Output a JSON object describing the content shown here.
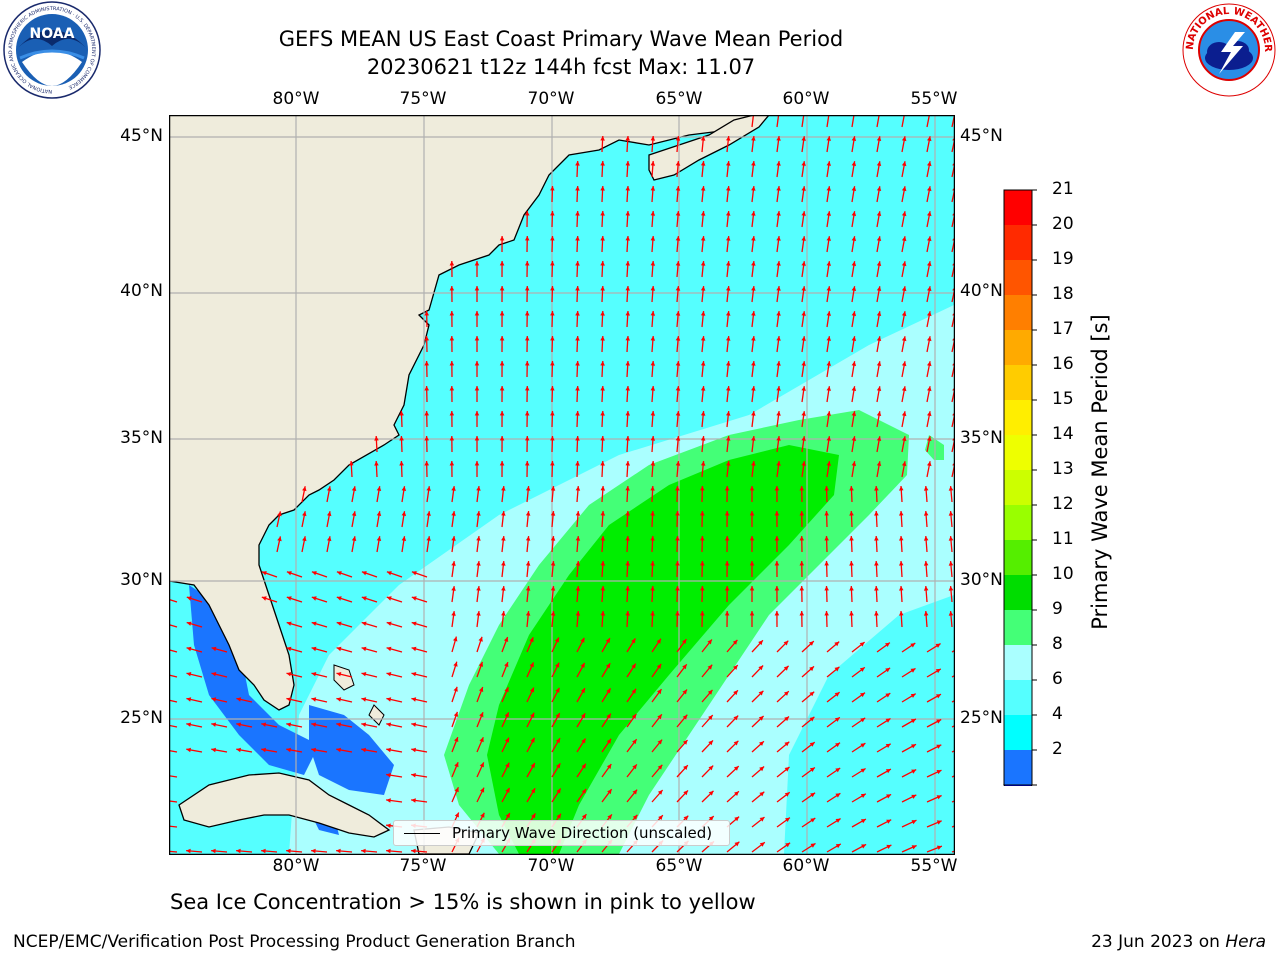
{
  "title": {
    "line1": "GEFS MEAN US East Coast Primary Wave Mean Period",
    "line2": "20230621 t12z 144h fcst   Max: 11.07"
  },
  "map": {
    "lon_ticks": [
      "80°W",
      "75°W",
      "70°W",
      "65°W",
      "60°W",
      "55°W"
    ],
    "lat_ticks": [
      "45°N",
      "40°N",
      "35°N",
      "30°N",
      "25°N"
    ],
    "lon_range": [
      -85,
      -54.3
    ],
    "lat_range": [
      20.5,
      46
    ],
    "grid": true,
    "colors": {
      "land": "#efecdc",
      "coast": "#000000",
      "arrows": "#ff0000",
      "grid": "#b0b0b0"
    }
  },
  "legend": {
    "label": "Primary Wave Direction (unscaled)"
  },
  "colorbar": {
    "label": "Primary Wave Mean Period [s]",
    "ticks": [
      "21",
      "20",
      "19",
      "18",
      "17",
      "16",
      "15",
      "14",
      "13",
      "12",
      "11",
      "10",
      "9",
      "8",
      "6",
      "4",
      "2"
    ],
    "colors": [
      "#ff0000",
      "#ff2a00",
      "#ff5500",
      "#ff7f00",
      "#ffaa00",
      "#ffcc00",
      "#ffee00",
      "#eeff00",
      "#ccff00",
      "#99ff00",
      "#55ee00",
      "#00dd00",
      "#44ff77",
      "#aaffff",
      "#55ffff",
      "#00ffff",
      "#1a75ff"
    ],
    "extend_min_color": "#0000ff"
  },
  "note": "Sea Ice Concentration > 15% is shown in pink to yellow",
  "footer": {
    "left": "NCEP/EMC/Verification Post Processing Product Generation Branch",
    "right_prefix": "23 Jun 2023 on ",
    "right_host": "Hera"
  },
  "logos": {
    "noaa": {
      "text": "NOAA",
      "ring": "NATIONAL OCEANIC AND ATMOSPHERIC ADMINISTRATION · U.S. DEPARTMENT OF COMMERCE"
    },
    "nws": {
      "ring": "NATIONAL WEATHER SERVICE"
    }
  }
}
